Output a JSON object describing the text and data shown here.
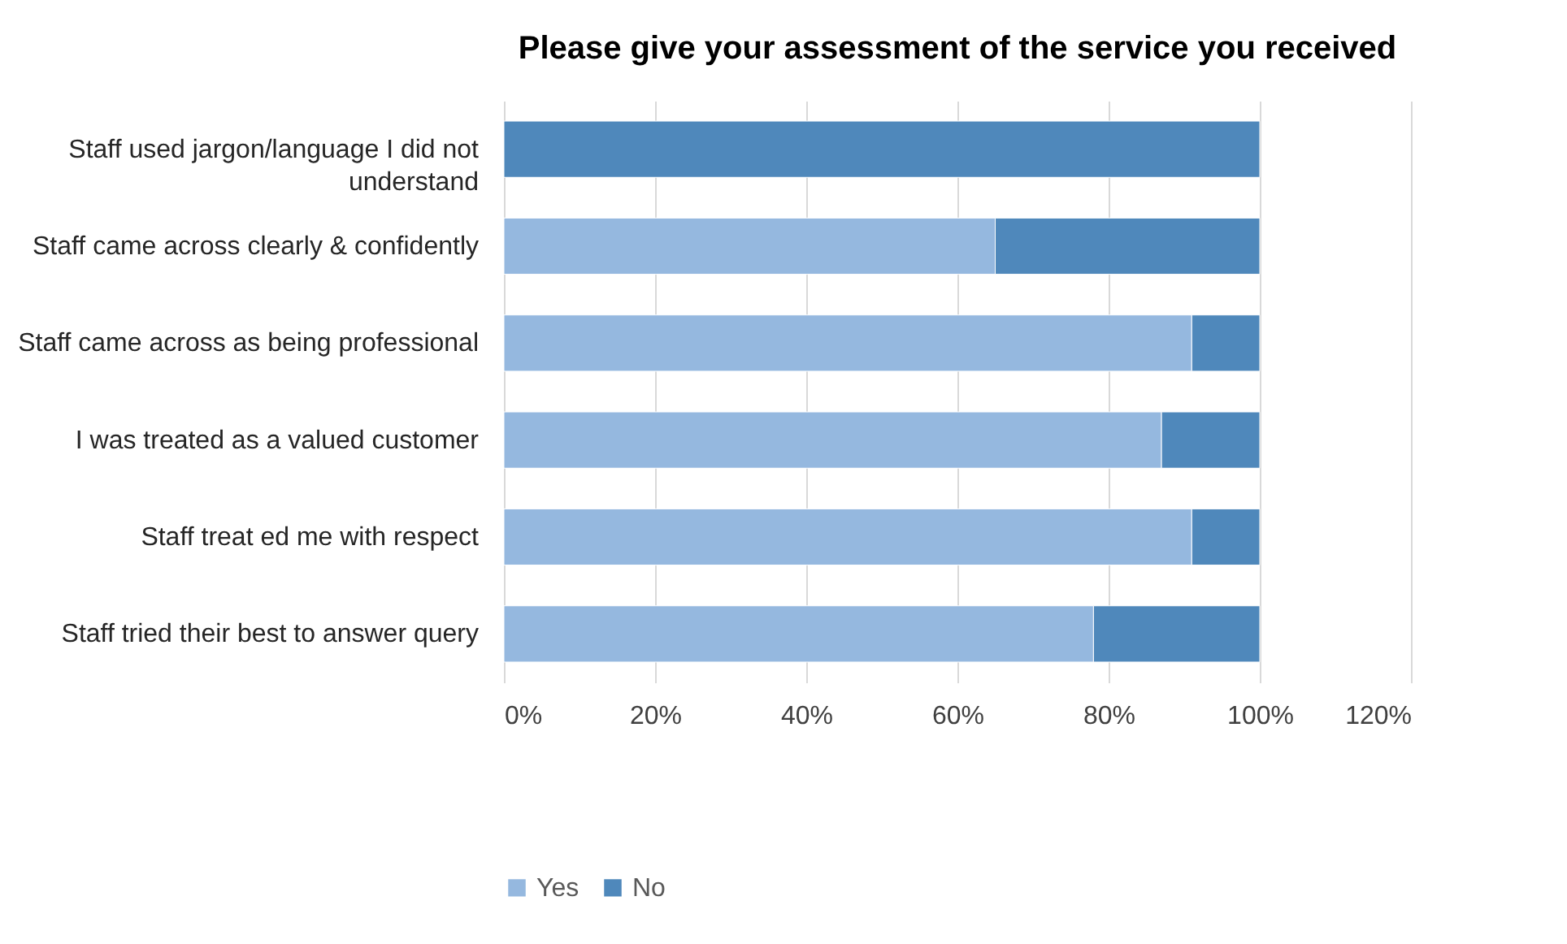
{
  "chart_data": {
    "type": "bar",
    "orientation": "horizontal",
    "stacked": true,
    "title": "Please give your assessment of the service you received",
    "categories": [
      "Staff used jargon/language I did not understand",
      "Staff came across clearly & confidently",
      "Staff came across as being professional",
      "I was treated as a valued customer",
      "Staff treat ed me with respect",
      "Staff tried their best to answer query"
    ],
    "series": [
      {
        "name": "Yes",
        "color": "#95b8df",
        "values": [
          0,
          65,
          91,
          87,
          91,
          78
        ]
      },
      {
        "name": "No",
        "color": "#4f88bb",
        "values": [
          100,
          35,
          9,
          13,
          9,
          22
        ]
      }
    ],
    "xlim": [
      0,
      120
    ],
    "xticks": [
      {
        "value": 0,
        "label": "0%"
      },
      {
        "value": 20,
        "label": "20%"
      },
      {
        "value": 40,
        "label": "40%"
      },
      {
        "value": 60,
        "label": "60%"
      },
      {
        "value": 80,
        "label": "80%"
      },
      {
        "value": 100,
        "label": "100%"
      },
      {
        "value": 120,
        "label": "120%"
      }
    ],
    "grid": "x",
    "legend": "bottom"
  }
}
